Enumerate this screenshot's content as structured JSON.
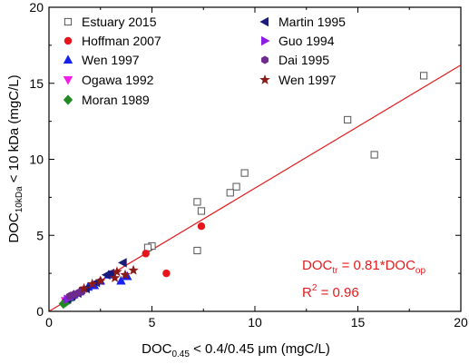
{
  "chart_data": {
    "type": "scatter",
    "xlabel": {
      "main": "DOC",
      "sub": "0.45",
      "rest": " < 0.4/0.45 μm (mgC/L)"
    },
    "ylabel": {
      "main": "DOC",
      "sub": "10kDa",
      "rest": " < 10 kDa (mgC/L)"
    },
    "xlim": [
      0,
      20
    ],
    "ylim": [
      0,
      20
    ],
    "x_ticks": [
      "0",
      "5",
      "10",
      "15",
      "20"
    ],
    "y_ticks": [
      "0",
      "5",
      "10",
      "15",
      "20"
    ],
    "grid": false,
    "legend_position": "top-left",
    "fit_line": {
      "slope": 0.81,
      "color": "#e31a1c"
    },
    "annotations": {
      "equation": {
        "lhs_main": "DOC",
        "lhs_sub": "tr",
        "mid": " = 0.81*DOC",
        "rhs_sub": "op"
      },
      "r2": {
        "main": "R",
        "sup": "2",
        "rest": " = 0.96"
      },
      "color": "#e31a1c"
    },
    "series": [
      {
        "name": "Estuary 2015",
        "marker": "open-square",
        "color": "#555555",
        "points": [
          [
            18.2,
            15.5
          ],
          [
            14.5,
            12.6
          ],
          [
            15.8,
            10.3
          ],
          [
            9.5,
            9.1
          ],
          [
            9.1,
            8.2
          ],
          [
            8.8,
            7.8
          ],
          [
            7.2,
            7.2
          ],
          [
            7.4,
            6.6
          ],
          [
            7.2,
            4.0
          ],
          [
            5.0,
            4.3
          ],
          [
            4.8,
            4.2
          ]
        ]
      },
      {
        "name": "Hoffman 2007",
        "marker": "circle",
        "color": "#e8141c",
        "points": [
          [
            7.4,
            5.6
          ],
          [
            4.7,
            3.8
          ],
          [
            5.7,
            2.5
          ],
          [
            1.6,
            1.4
          ],
          [
            1.2,
            1.0
          ],
          [
            1.0,
            0.9
          ],
          [
            0.8,
            0.7
          ]
        ]
      },
      {
        "name": "Wen 1997",
        "marker": "triangle-up",
        "color": "#1420f0",
        "points": [
          [
            3.8,
            2.3
          ],
          [
            3.5,
            2.0
          ],
          [
            2.9,
            2.4
          ],
          [
            2.5,
            2.0
          ],
          [
            2.2,
            1.7
          ],
          [
            1.9,
            1.6
          ],
          [
            1.5,
            1.3
          ],
          [
            1.2,
            1.1
          ],
          [
            1.0,
            0.9
          ],
          [
            0.8,
            0.7
          ]
        ]
      },
      {
        "name": "Ogawa 1992",
        "marker": "triangle-down",
        "color": "#f01ee6",
        "points": [
          [
            1.0,
            0.8
          ],
          [
            0.8,
            0.7
          ]
        ]
      },
      {
        "name": "Moran 1989",
        "marker": "diamond",
        "color": "#1f8a1f",
        "points": [
          [
            0.8,
            0.6
          ],
          [
            0.7,
            0.5
          ],
          [
            0.9,
            0.7
          ],
          [
            1.0,
            0.8
          ]
        ]
      },
      {
        "name": "Martin 1995",
        "marker": "triangle-left",
        "color": "#1a1a7a",
        "points": [
          [
            3.6,
            3.2
          ],
          [
            3.0,
            2.5
          ],
          [
            2.8,
            2.4
          ],
          [
            2.3,
            1.9
          ],
          [
            1.8,
            1.5
          ],
          [
            1.4,
            1.2
          ],
          [
            1.1,
            1.0
          ],
          [
            0.9,
            0.8
          ]
        ]
      },
      {
        "name": "Guo 1994",
        "marker": "triangle-right",
        "color": "#8a1ee6",
        "points": [
          [
            1.2,
            1.0
          ],
          [
            0.9,
            0.8
          ]
        ]
      },
      {
        "name": "Dai 1995",
        "marker": "hexagon",
        "color": "#6e2a8c",
        "points": [
          [
            1.6,
            1.3
          ],
          [
            1.4,
            1.2
          ],
          [
            1.2,
            1.1
          ],
          [
            1.0,
            1.0
          ]
        ]
      },
      {
        "name": "Wen 1997",
        "marker": "star",
        "color": "#8b1a1a",
        "points": [
          [
            4.1,
            2.7
          ],
          [
            3.7,
            2.4
          ],
          [
            3.3,
            2.6
          ],
          [
            3.2,
            2.2
          ],
          [
            2.5,
            2.0
          ],
          [
            2.1,
            1.8
          ],
          [
            1.7,
            1.5
          ]
        ]
      }
    ]
  }
}
